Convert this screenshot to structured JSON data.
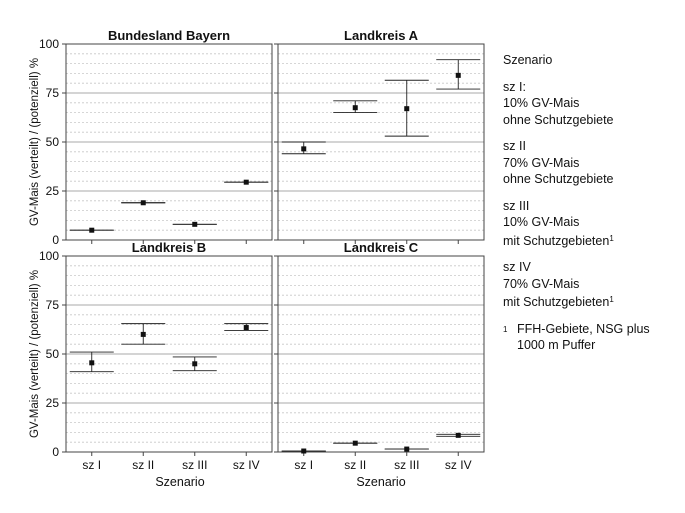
{
  "chart_data": {
    "type": "scatter",
    "ylabel": "GV-Mais (verteilt) / (potenziell) %",
    "xlabel": "Szenario",
    "ylim": [
      0,
      100
    ],
    "yticks": [
      "0",
      "25",
      "50",
      "75",
      "100"
    ],
    "categories": [
      "sz I",
      "sz II",
      "sz III",
      "sz IV"
    ],
    "panels": [
      {
        "title": "Bundesland Bayern",
        "points": [
          {
            "x": "sz I",
            "y": 5,
            "low": 5,
            "high": 5
          },
          {
            "x": "sz II",
            "y": 19,
            "low": 19,
            "high": 19
          },
          {
            "x": "sz III",
            "y": 8,
            "low": 8,
            "high": 8
          },
          {
            "x": "sz IV",
            "y": 29.5,
            "low": 29.5,
            "high": 29.5
          }
        ]
      },
      {
        "title": "Landkreis A",
        "points": [
          {
            "x": "sz I",
            "y": 46.5,
            "low": 44,
            "high": 50
          },
          {
            "x": "sz II",
            "y": 67.5,
            "low": 65,
            "high": 71
          },
          {
            "x": "sz III",
            "y": 67,
            "low": 53,
            "high": 81.5
          },
          {
            "x": "sz IV",
            "y": 84,
            "low": 77,
            "high": 92
          }
        ]
      },
      {
        "title": "Landkreis B",
        "points": [
          {
            "x": "sz I",
            "y": 45.5,
            "low": 41,
            "high": 51
          },
          {
            "x": "sz II",
            "y": 60,
            "low": 55,
            "high": 65.5
          },
          {
            "x": "sz III",
            "y": 45,
            "low": 41.5,
            "high": 48.5
          },
          {
            "x": "sz IV",
            "y": 63.5,
            "low": 62,
            "high": 65.5
          }
        ]
      },
      {
        "title": "Landkreis C",
        "points": [
          {
            "x": "sz I",
            "y": 0.5,
            "low": 0.5,
            "high": 0.5
          },
          {
            "x": "sz II",
            "y": 4.5,
            "low": 4.5,
            "high": 4.5
          },
          {
            "x": "sz III",
            "y": 1.5,
            "low": 1.5,
            "high": 1.5
          },
          {
            "x": "sz IV",
            "y": 8.5,
            "low": 8,
            "high": 9
          }
        ]
      }
    ],
    "grid": true,
    "legend_position": "right"
  },
  "legend": {
    "title": "Szenario",
    "entries": [
      {
        "code": "sz I:",
        "line1": "10% GV-Mais",
        "line2": "ohne Schutzgebiete",
        "footnote_ref": ""
      },
      {
        "code": "sz II",
        "line1": "70% GV-Mais",
        "line2": "ohne Schutzgebiete",
        "footnote_ref": ""
      },
      {
        "code": "sz III",
        "line1": "10% GV-Mais",
        "line2": "mit Schutzgebieten",
        "footnote_ref": "1"
      },
      {
        "code": "sz IV",
        "line1": "70% GV-Mais",
        "line2": "mit Schutzgebieten",
        "footnote_ref": "1"
      }
    ],
    "footnote": {
      "mark": "1",
      "line1": "FFH-Gebiete, NSG plus",
      "line2": "1000 m Puffer"
    }
  }
}
